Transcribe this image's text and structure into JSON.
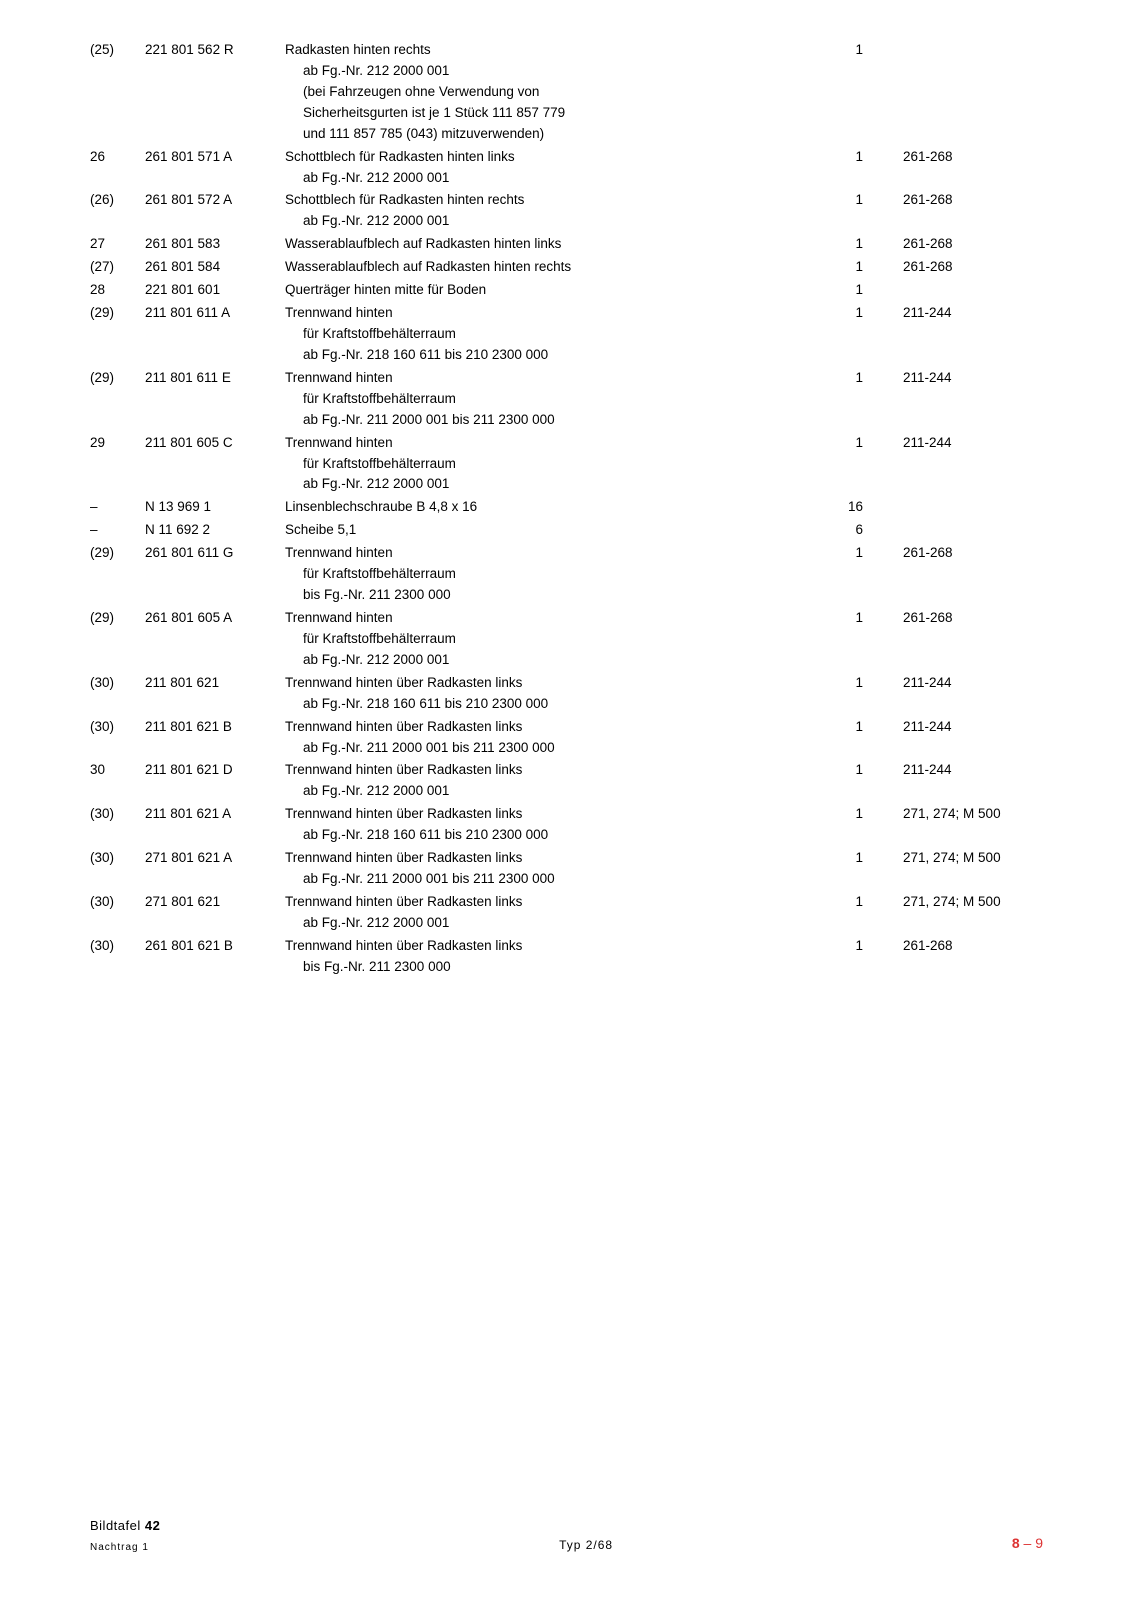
{
  "rows": [
    {
      "idx": "(25)",
      "part": "221 801 562 R",
      "desc": "Radkasten hinten rechts",
      "subs": [
        "ab Fg.-Nr. 212 2000 001",
        "(bei Fahrzeugen ohne Verwendung von",
        "Sicherheitsgurten ist je 1 Stück 111 857 779",
        "und 111 857 785 (043) mitzuverwenden)"
      ],
      "qty": "1",
      "ref": ""
    },
    {
      "idx": "26",
      "part": "261 801 571 A",
      "desc": "Schottblech für Radkasten hinten links",
      "subs": [
        "ab Fg.-Nr. 212 2000 001"
      ],
      "qty": "1",
      "ref": "261-268"
    },
    {
      "idx": "(26)",
      "part": "261 801 572 A",
      "desc": "Schottblech für Radkasten hinten rechts",
      "subs": [
        "ab Fg.-Nr. 212 2000 001"
      ],
      "qty": "1",
      "ref": "261-268"
    },
    {
      "idx": "27",
      "part": "261 801 583",
      "desc": "Wasserablaufblech auf Radkasten hinten links",
      "subs": [],
      "qty": "1",
      "ref": "261-268"
    },
    {
      "idx": "(27)",
      "part": "261 801 584",
      "desc": "Wasserablaufblech auf Radkasten hinten rechts",
      "subs": [],
      "qty": "1",
      "ref": "261-268"
    },
    {
      "idx": "28",
      "part": "221 801 601",
      "desc": "Querträger hinten mitte für Boden",
      "subs": [],
      "qty": "1",
      "ref": ""
    },
    {
      "idx": "(29)",
      "part": "211 801 611 A",
      "desc": "Trennwand hinten",
      "subs": [
        "für Kraftstoffbehälterraum",
        "ab Fg.-Nr. 218 160 611 bis 210 2300 000"
      ],
      "qty": "1",
      "ref": "211-244"
    },
    {
      "idx": "(29)",
      "part": "211 801 611 E",
      "desc": "Trennwand hinten",
      "subs": [
        "für Kraftstoffbehälterraum",
        "ab Fg.-Nr. 211 2000 001 bis 211 2300 000"
      ],
      "qty": "1",
      "ref": "211-244"
    },
    {
      "idx": "29",
      "part": "211 801 605 C",
      "desc": "Trennwand hinten",
      "subs": [
        "für Kraftstoffbehälterraum",
        "ab Fg.-Nr. 212 2000 001"
      ],
      "qty": "1",
      "ref": "211-244"
    },
    {
      "idx": "–",
      "part": "N 13 969 1",
      "desc": "Linsenblechschraube B 4,8 x 16",
      "subs": [],
      "qty": "16",
      "ref": ""
    },
    {
      "idx": "–",
      "part": "N 11 692 2",
      "desc": "Scheibe 5,1",
      "subs": [],
      "qty": "6",
      "ref": ""
    },
    {
      "idx": "(29)",
      "part": "261 801 611 G",
      "desc": "Trennwand hinten",
      "subs": [
        "für Kraftstoffbehälterraum",
        "bis Fg.-Nr. 211 2300 000"
      ],
      "qty": "1",
      "ref": "261-268"
    },
    {
      "idx": "(29)",
      "part": "261 801 605 A",
      "desc": "Trennwand hinten",
      "subs": [
        "für Kraftstoffbehälterraum",
        "ab Fg.-Nr. 212 2000 001"
      ],
      "qty": "1",
      "ref": "261-268"
    },
    {
      "idx": "(30)",
      "part": "211 801 621",
      "desc": "Trennwand hinten über Radkasten links",
      "subs": [
        "ab Fg.-Nr. 218 160 611 bis 210 2300 000"
      ],
      "qty": "1",
      "ref": "211-244"
    },
    {
      "idx": "(30)",
      "part": "211 801 621 B",
      "desc": "Trennwand hinten über Radkasten links",
      "subs": [
        "ab Fg.-Nr. 211 2000 001 bis 211 2300 000"
      ],
      "qty": "1",
      "ref": "211-244"
    },
    {
      "idx": "30",
      "part": "211 801 621 D",
      "desc": "Trennwand hinten über Radkasten links",
      "subs": [
        "ab Fg.-Nr. 212 2000 001"
      ],
      "qty": "1",
      "ref": "211-244"
    },
    {
      "idx": "(30)",
      "part": "211 801 621 A",
      "desc": "Trennwand hinten über Radkasten links",
      "subs": [
        "ab Fg.-Nr. 218 160 611 bis 210 2300 000"
      ],
      "qty": "1",
      "ref": "271, 274; M 500"
    },
    {
      "idx": "(30)",
      "part": "271 801 621 A",
      "desc": "Trennwand hinten über Radkasten links",
      "subs": [
        "ab Fg.-Nr. 211 2000 001 bis 211 2300 000"
      ],
      "qty": "1",
      "ref": "271, 274; M 500"
    },
    {
      "idx": "(30)",
      "part": "271 801 621",
      "desc": "Trennwand hinten über Radkasten links",
      "subs": [
        "ab Fg.-Nr. 212 2000 001"
      ],
      "qty": "1",
      "ref": "271, 274; M 500"
    },
    {
      "idx": "(30)",
      "part": "261 801 621 B",
      "desc": "Trennwand hinten über Radkasten links",
      "subs": [
        "bis Fg.-Nr. 211 2300 000"
      ],
      "qty": "1",
      "ref": "261-268"
    }
  ],
  "footer": {
    "plate_label": "Bildtafel",
    "plate_num": "42",
    "supplement": "Nachtrag 1",
    "type": "Typ 2/68",
    "page_bold": "8",
    "page_rest": " – 9"
  }
}
